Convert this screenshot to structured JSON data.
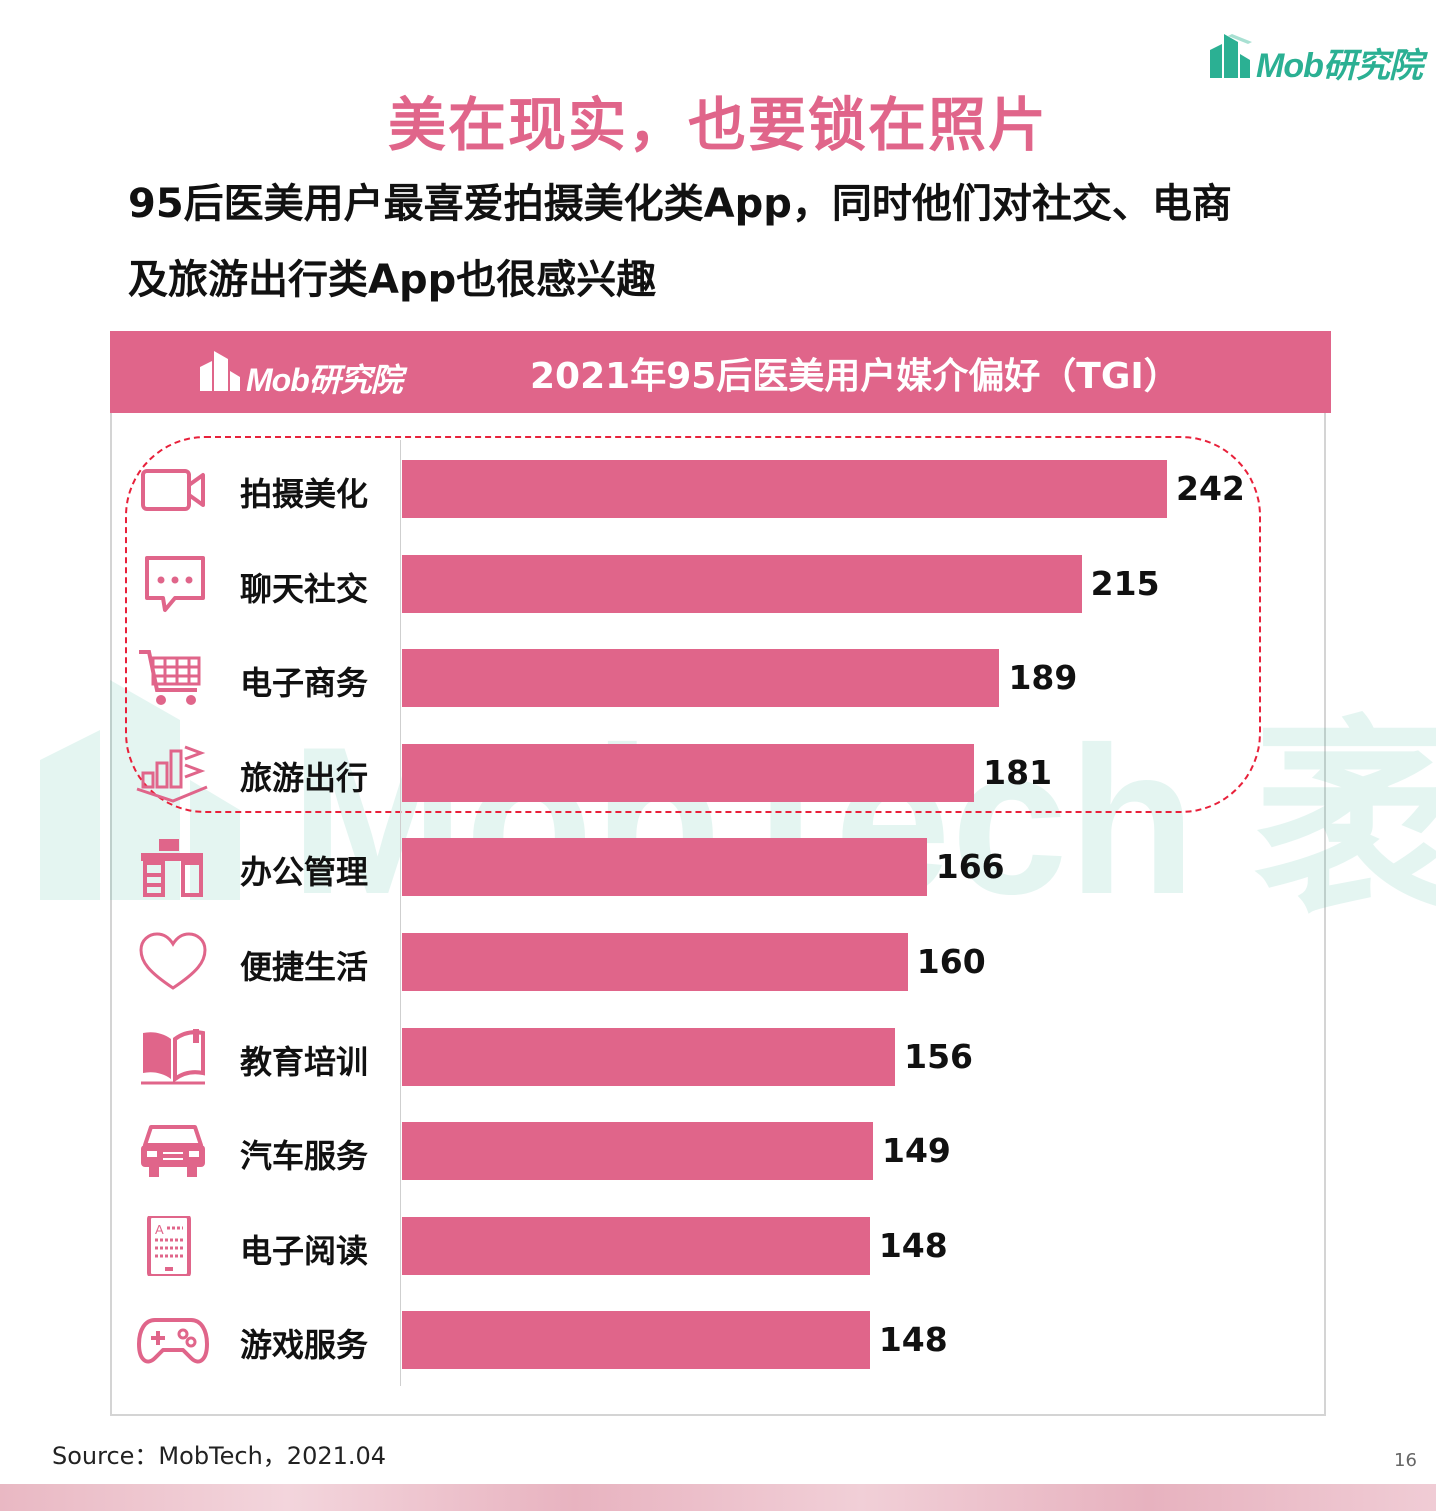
{
  "brand": {
    "logo_text": "Mob研究院",
    "accent": "#e0658a",
    "brand_green": "#2bb093"
  },
  "page_title": "美在现实，也要锁在照片",
  "subtitle_line1": "95后医美用户最喜爱拍摄美化类App，同时他们对社交、电商",
  "subtitle_line2": "及旅游出行类App也很感兴趣",
  "watermark": "MobTech 袤博",
  "chart_data": {
    "type": "bar",
    "orientation": "horizontal",
    "title": "2021年95后医美用户媒介偏好（TGI）",
    "categories": [
      "拍摄美化",
      "聊天社交",
      "电子商务",
      "旅游出行",
      "办公管理",
      "便捷生活",
      "教育培训",
      "汽车服务",
      "电子阅读",
      "游戏服务"
    ],
    "values": [
      242,
      215,
      189,
      181,
      166,
      160,
      156,
      149,
      148,
      148
    ],
    "icons": [
      "video-camera-icon",
      "chat-bubble-icon",
      "shopping-cart-icon",
      "city-travel-icon",
      "office-desk-icon",
      "heart-icon",
      "book-icon",
      "car-icon",
      "ereader-icon",
      "gamepad-icon"
    ],
    "highlighted_categories": [
      "拍摄美化",
      "聊天社交",
      "电子商务",
      "旅游出行"
    ],
    "xlim": [
      0,
      242
    ],
    "bar_color": "#e0658a",
    "grid": false,
    "legend": "none"
  },
  "footer": {
    "source": "Source：MobTech，2021.04",
    "page_number": "16"
  }
}
